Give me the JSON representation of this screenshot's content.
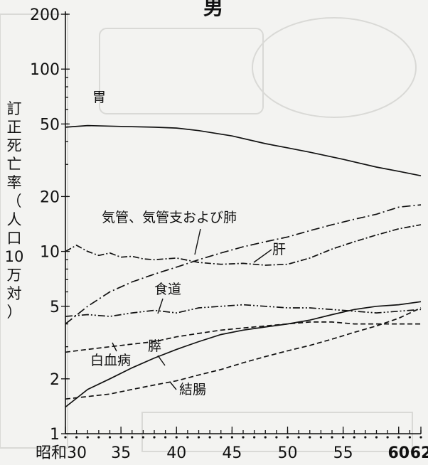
{
  "chart_data": {
    "type": "line",
    "title": "男",
    "ylabel": [
      "訂",
      "正",
      "死",
      "亡",
      "率",
      "（",
      "人",
      "口",
      "10",
      "万",
      "対",
      "）"
    ],
    "y_scale": "log",
    "ylim": [
      1,
      200
    ],
    "xlim": [
      30,
      62
    ],
    "y_ticks": [
      {
        "value": 1,
        "label": "1"
      },
      {
        "value": 2,
        "label": "2"
      },
      {
        "value": 5,
        "label": "5"
      },
      {
        "value": 10,
        "label": "10"
      },
      {
        "value": 20,
        "label": "20"
      },
      {
        "value": 50,
        "label": "50"
      },
      {
        "value": 100,
        "label": "100"
      },
      {
        "value": 200,
        "label": "200"
      }
    ],
    "x_ticks": [
      {
        "value": 30,
        "label": "昭和30"
      },
      {
        "value": 35,
        "label": "35"
      },
      {
        "value": 40,
        "label": "40"
      },
      {
        "value": 45,
        "label": "45"
      },
      {
        "value": 50,
        "label": "50"
      },
      {
        "value": 55,
        "label": "55"
      },
      {
        "value": 60,
        "label": "60"
      },
      {
        "value": 62,
        "label": "62"
      }
    ],
    "series": [
      {
        "name": "胃",
        "style": "solid",
        "points": [
          [
            30,
            48
          ],
          [
            32,
            49
          ],
          [
            35,
            48.5
          ],
          [
            38,
            48
          ],
          [
            40,
            47.5
          ],
          [
            42,
            46
          ],
          [
            45,
            43
          ],
          [
            48,
            39
          ],
          [
            50,
            37
          ],
          [
            52,
            35
          ],
          [
            55,
            32
          ],
          [
            58,
            29
          ],
          [
            60,
            27.5
          ],
          [
            62,
            26
          ]
        ]
      },
      {
        "name": "気管、気管支および肺",
        "style": "dashdot",
        "points": [
          [
            30,
            4
          ],
          [
            32,
            5
          ],
          [
            34,
            6
          ],
          [
            36,
            6.8
          ],
          [
            38,
            7.5
          ],
          [
            40,
            8.2
          ],
          [
            42,
            9
          ],
          [
            44,
            9.8
          ],
          [
            46,
            10.6
          ],
          [
            48,
            11.3
          ],
          [
            50,
            12
          ],
          [
            52,
            13
          ],
          [
            54,
            14
          ],
          [
            56,
            15
          ],
          [
            58,
            16
          ],
          [
            60,
            17.5
          ],
          [
            62,
            18
          ]
        ]
      },
      {
        "name": "肝",
        "style": "dashdot2",
        "points": [
          [
            30,
            10
          ],
          [
            31,
            10.8
          ],
          [
            32,
            10
          ],
          [
            33,
            9.5
          ],
          [
            34,
            9.8
          ],
          [
            35,
            9.3
          ],
          [
            36,
            9.4
          ],
          [
            37,
            9.1
          ],
          [
            38,
            9
          ],
          [
            40,
            9.2
          ],
          [
            42,
            8.7
          ],
          [
            44,
            8.5
          ],
          [
            46,
            8.6
          ],
          [
            48,
            8.4
          ],
          [
            50,
            8.5
          ],
          [
            52,
            9.2
          ],
          [
            54,
            10.3
          ],
          [
            56,
            11.3
          ],
          [
            58,
            12.3
          ],
          [
            60,
            13.3
          ],
          [
            62,
            14
          ]
        ]
      },
      {
        "name": "食道",
        "style": "dashdotdot",
        "points": [
          [
            30,
            4.4
          ],
          [
            32,
            4.5
          ],
          [
            34,
            4.4
          ],
          [
            36,
            4.6
          ],
          [
            38,
            4.75
          ],
          [
            40,
            4.6
          ],
          [
            42,
            4.9
          ],
          [
            44,
            5
          ],
          [
            46,
            5.1
          ],
          [
            48,
            5
          ],
          [
            50,
            4.9
          ],
          [
            52,
            4.9
          ],
          [
            54,
            4.8
          ],
          [
            56,
            4.7
          ],
          [
            58,
            4.6
          ],
          [
            60,
            4.7
          ],
          [
            62,
            4.8
          ]
        ]
      },
      {
        "name": "白血病",
        "style": "dashed",
        "points": [
          [
            30,
            2.8
          ],
          [
            32,
            2.9
          ],
          [
            34,
            3
          ],
          [
            36,
            3.1
          ],
          [
            38,
            3.2
          ],
          [
            40,
            3.4
          ],
          [
            42,
            3.55
          ],
          [
            44,
            3.7
          ],
          [
            46,
            3.8
          ],
          [
            48,
            3.9
          ],
          [
            50,
            4
          ],
          [
            52,
            4.1
          ],
          [
            54,
            4.1
          ],
          [
            56,
            4
          ],
          [
            58,
            4
          ],
          [
            60,
            4
          ],
          [
            62,
            4
          ]
        ]
      },
      {
        "name": "膵",
        "style": "solid",
        "points": [
          [
            30,
            1.4
          ],
          [
            32,
            1.75
          ],
          [
            34,
            2
          ],
          [
            36,
            2.3
          ],
          [
            38,
            2.6
          ],
          [
            40,
            2.9
          ],
          [
            42,
            3.2
          ],
          [
            44,
            3.5
          ],
          [
            46,
            3.7
          ],
          [
            48,
            3.85
          ],
          [
            50,
            4
          ],
          [
            52,
            4.2
          ],
          [
            54,
            4.5
          ],
          [
            56,
            4.8
          ],
          [
            58,
            5
          ],
          [
            60,
            5.1
          ],
          [
            62,
            5.3
          ]
        ]
      },
      {
        "name": "結腸",
        "style": "dashed",
        "points": [
          [
            30,
            1.55
          ],
          [
            32,
            1.6
          ],
          [
            34,
            1.65
          ],
          [
            36,
            1.75
          ],
          [
            38,
            1.85
          ],
          [
            40,
            1.95
          ],
          [
            42,
            2.1
          ],
          [
            44,
            2.25
          ],
          [
            46,
            2.45
          ],
          [
            48,
            2.65
          ],
          [
            50,
            2.85
          ],
          [
            52,
            3.05
          ],
          [
            54,
            3.3
          ],
          [
            56,
            3.6
          ],
          [
            58,
            3.9
          ],
          [
            60,
            4.3
          ],
          [
            62,
            4.9
          ]
        ]
      }
    ]
  }
}
